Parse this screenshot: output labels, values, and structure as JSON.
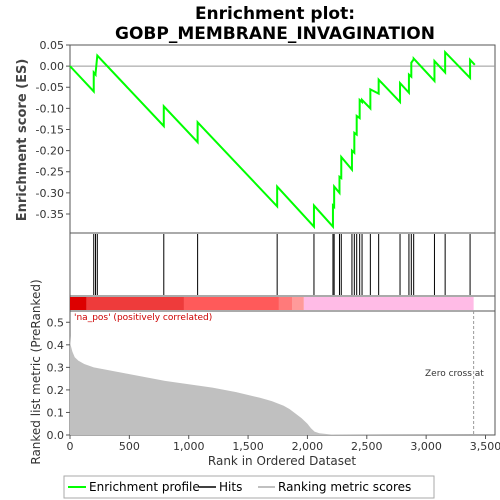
{
  "chart_data": {
    "type": "line",
    "title_line1": "Enrichment plot:",
    "title_line2": "GOBP_MEMBRANE_INVAGINATION",
    "es_panel": {
      "ylabel": "Enrichment score (ES)",
      "ylim": [
        -0.395,
        0.05
      ],
      "yticks": [
        0.05,
        0.0,
        -0.05,
        -0.1,
        -0.15,
        -0.2,
        -0.25,
        -0.3,
        -0.35
      ],
      "ytick_labels": [
        "0.05",
        "0.00",
        "-0.05",
        "-0.10",
        "-0.15",
        "-0.20",
        "-0.25",
        "-0.30",
        "-0.35"
      ],
      "zero_line": true,
      "series": [
        {
          "name": "Enrichment profile",
          "color": "#00ff00",
          "x": [
            0,
            200,
            200,
            215,
            215,
            230,
            790,
            790,
            1075,
            1075,
            1745,
            1745,
            2055,
            2055,
            2215,
            2215,
            2225,
            2225,
            2270,
            2270,
            2285,
            2285,
            2375,
            2375,
            2395,
            2395,
            2415,
            2415,
            2440,
            2440,
            2460,
            2460,
            2530,
            2530,
            2600,
            2600,
            2780,
            2780,
            2855,
            2855,
            2875,
            2875,
            2895,
            2895,
            3070,
            3070,
            3160,
            3160,
            3370,
            3370,
            3410
          ],
          "y": [
            0.0,
            -0.06,
            -0.015,
            -0.02,
            -0.018,
            0.025,
            -0.142,
            -0.095,
            -0.18,
            -0.133,
            -0.332,
            -0.285,
            -0.38,
            -0.33,
            -0.38,
            -0.33,
            -0.333,
            -0.285,
            -0.3,
            -0.262,
            -0.265,
            -0.215,
            -0.245,
            -0.2,
            -0.205,
            -0.158,
            -0.162,
            -0.118,
            -0.123,
            -0.08,
            -0.085,
            -0.08,
            -0.1,
            -0.055,
            -0.065,
            -0.032,
            -0.085,
            -0.04,
            -0.063,
            -0.02,
            -0.025,
            0.008,
            0.016,
            0.018,
            -0.035,
            0.012,
            -0.015,
            0.033,
            -0.028,
            0.015,
            0.003
          ]
        }
      ]
    },
    "hits_panel": {
      "series_name": "Hits",
      "hit_positions": [
        200,
        215,
        230,
        790,
        1075,
        1745,
        2055,
        2215,
        2225,
        2270,
        2285,
        2375,
        2395,
        2415,
        2440,
        2460,
        2530,
        2600,
        2780,
        2855,
        2875,
        2895,
        3070,
        3160,
        3370
      ]
    },
    "color_bar": {
      "segments": [
        {
          "from": 0,
          "to": 140,
          "color": "#dd0000"
        },
        {
          "from": 140,
          "to": 960,
          "color": "#ee3b3b"
        },
        {
          "from": 960,
          "to": 1760,
          "color": "#ff5a5a"
        },
        {
          "from": 1760,
          "to": 1870,
          "color": "#ff7a7a"
        },
        {
          "from": 1870,
          "to": 1970,
          "color": "#ff9a9a"
        },
        {
          "from": 1970,
          "to": 3400,
          "color": "#ffbbe6"
        }
      ]
    },
    "metric_panel": {
      "ylabel": "Ranked list metric (PreRanked)",
      "xlabel": "Rank in Ordered Dataset",
      "ylim": [
        0,
        0.55
      ],
      "yticks": [
        0.0,
        0.1,
        0.2,
        0.3,
        0.4,
        0.5
      ],
      "ytick_labels": [
        "0.0",
        "0.1",
        "0.2",
        "0.3",
        "0.4",
        "0.5"
      ],
      "xlim": [
        0,
        3580
      ],
      "xticks": [
        0,
        500,
        1000,
        1500,
        2000,
        2500,
        3000,
        3500
      ],
      "xtick_labels": [
        "0",
        "500",
        "1,000",
        "1,500",
        "2,000",
        "2,500",
        "3,000",
        "3,500"
      ],
      "fill_color": "#c0c0c0",
      "x": [
        0,
        5,
        20,
        40,
        70,
        120,
        200,
        300,
        500,
        800,
        1000,
        1200,
        1400,
        1600,
        1700,
        1800,
        1850,
        1900,
        1950,
        2000,
        2030,
        2060,
        2100,
        2200,
        3400
      ],
      "y": [
        0.44,
        0.4,
        0.37,
        0.345,
        0.33,
        0.315,
        0.3,
        0.29,
        0.27,
        0.24,
        0.225,
        0.21,
        0.19,
        0.165,
        0.15,
        0.13,
        0.115,
        0.095,
        0.075,
        0.05,
        0.03,
        0.015,
        0.008,
        0.002,
        0.0
      ],
      "annotation_pos": "'na_pos' (positively correlated)",
      "annotation_pos_color": "#cc0000",
      "zero_cross_label": "Zero cross at",
      "zero_cross_x": 3400
    },
    "legend": {
      "items": [
        {
          "label": "Enrichment profile",
          "color": "#00ff00"
        },
        {
          "label": "Hits",
          "color": "#000000"
        },
        {
          "label": "Ranking metric scores",
          "color": "#c0c0c0"
        }
      ]
    }
  }
}
